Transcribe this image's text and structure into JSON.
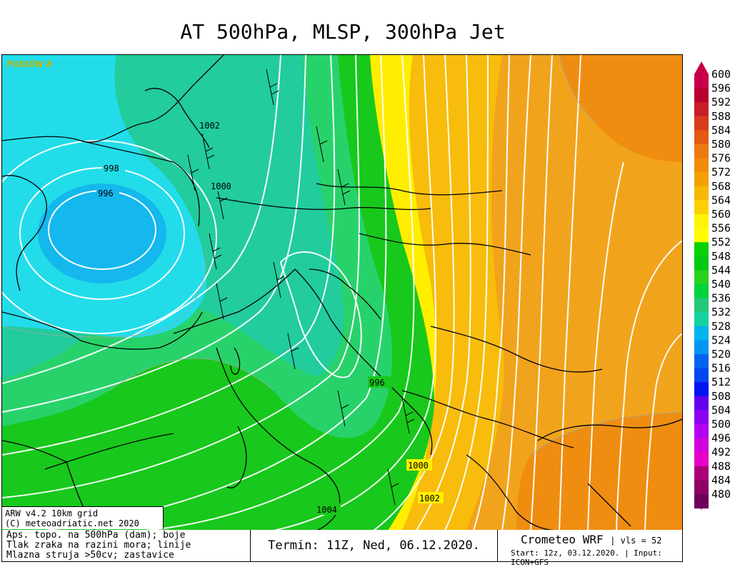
{
  "title": "AT 500hPa, MLSP, 300hPa Jet",
  "badge": "FUSION 8",
  "model_box": {
    "line1": "ARW v4.2 10km grid",
    "line2": "(C) meteoadriatic.net 2020"
  },
  "isobar_labels": [
    "1002",
    "998",
    "996",
    "1000",
    "996",
    "1000",
    "1002",
    "1004"
  ],
  "colorbar": {
    "values": [
      "600",
      "596",
      "592",
      "588",
      "584",
      "580",
      "576",
      "572",
      "568",
      "564",
      "560",
      "556",
      "552",
      "548",
      "544",
      "540",
      "536",
      "532",
      "528",
      "524",
      "520",
      "516",
      "512",
      "508",
      "504",
      "500",
      "496",
      "492",
      "488",
      "484",
      "480"
    ],
    "colors": [
      "#c8004a",
      "#b8002c",
      "#c81e28",
      "#d83c1e",
      "#e25a14",
      "#ec7810",
      "#f08c08",
      "#f2a002",
      "#f6b800",
      "#fcd000",
      "#fff400",
      "#fffb00",
      "#06d206",
      "#00c814",
      "#2ad21e",
      "#00d23c",
      "#24c878",
      "#14d2a0",
      "#00b4f0",
      "#0096f0",
      "#0064f0",
      "#0046f0",
      "#0014f0",
      "#6400f0",
      "#8c00f0",
      "#b400f0",
      "#d200dc",
      "#e600c8",
      "#aa0078",
      "#8c0064",
      "#6e005a"
    ],
    "top_arrow_color": "#c8004a",
    "bottom_arrow_color": "#5a0050"
  },
  "footer": {
    "left": [
      "Aps. topo. na 500hPa (dam); boje",
      "Tlak zraka na razini mora; linije",
      "Mlazna struja >50cv; zastavice"
    ],
    "middle": "Termin: 11Z, Ned, 06.12.2020.",
    "brand": "Crometeo WRF",
    "vls": "| vls = 52",
    "start": "Start: 12z, 03.12.2020. | Input: ICON+GFS"
  }
}
